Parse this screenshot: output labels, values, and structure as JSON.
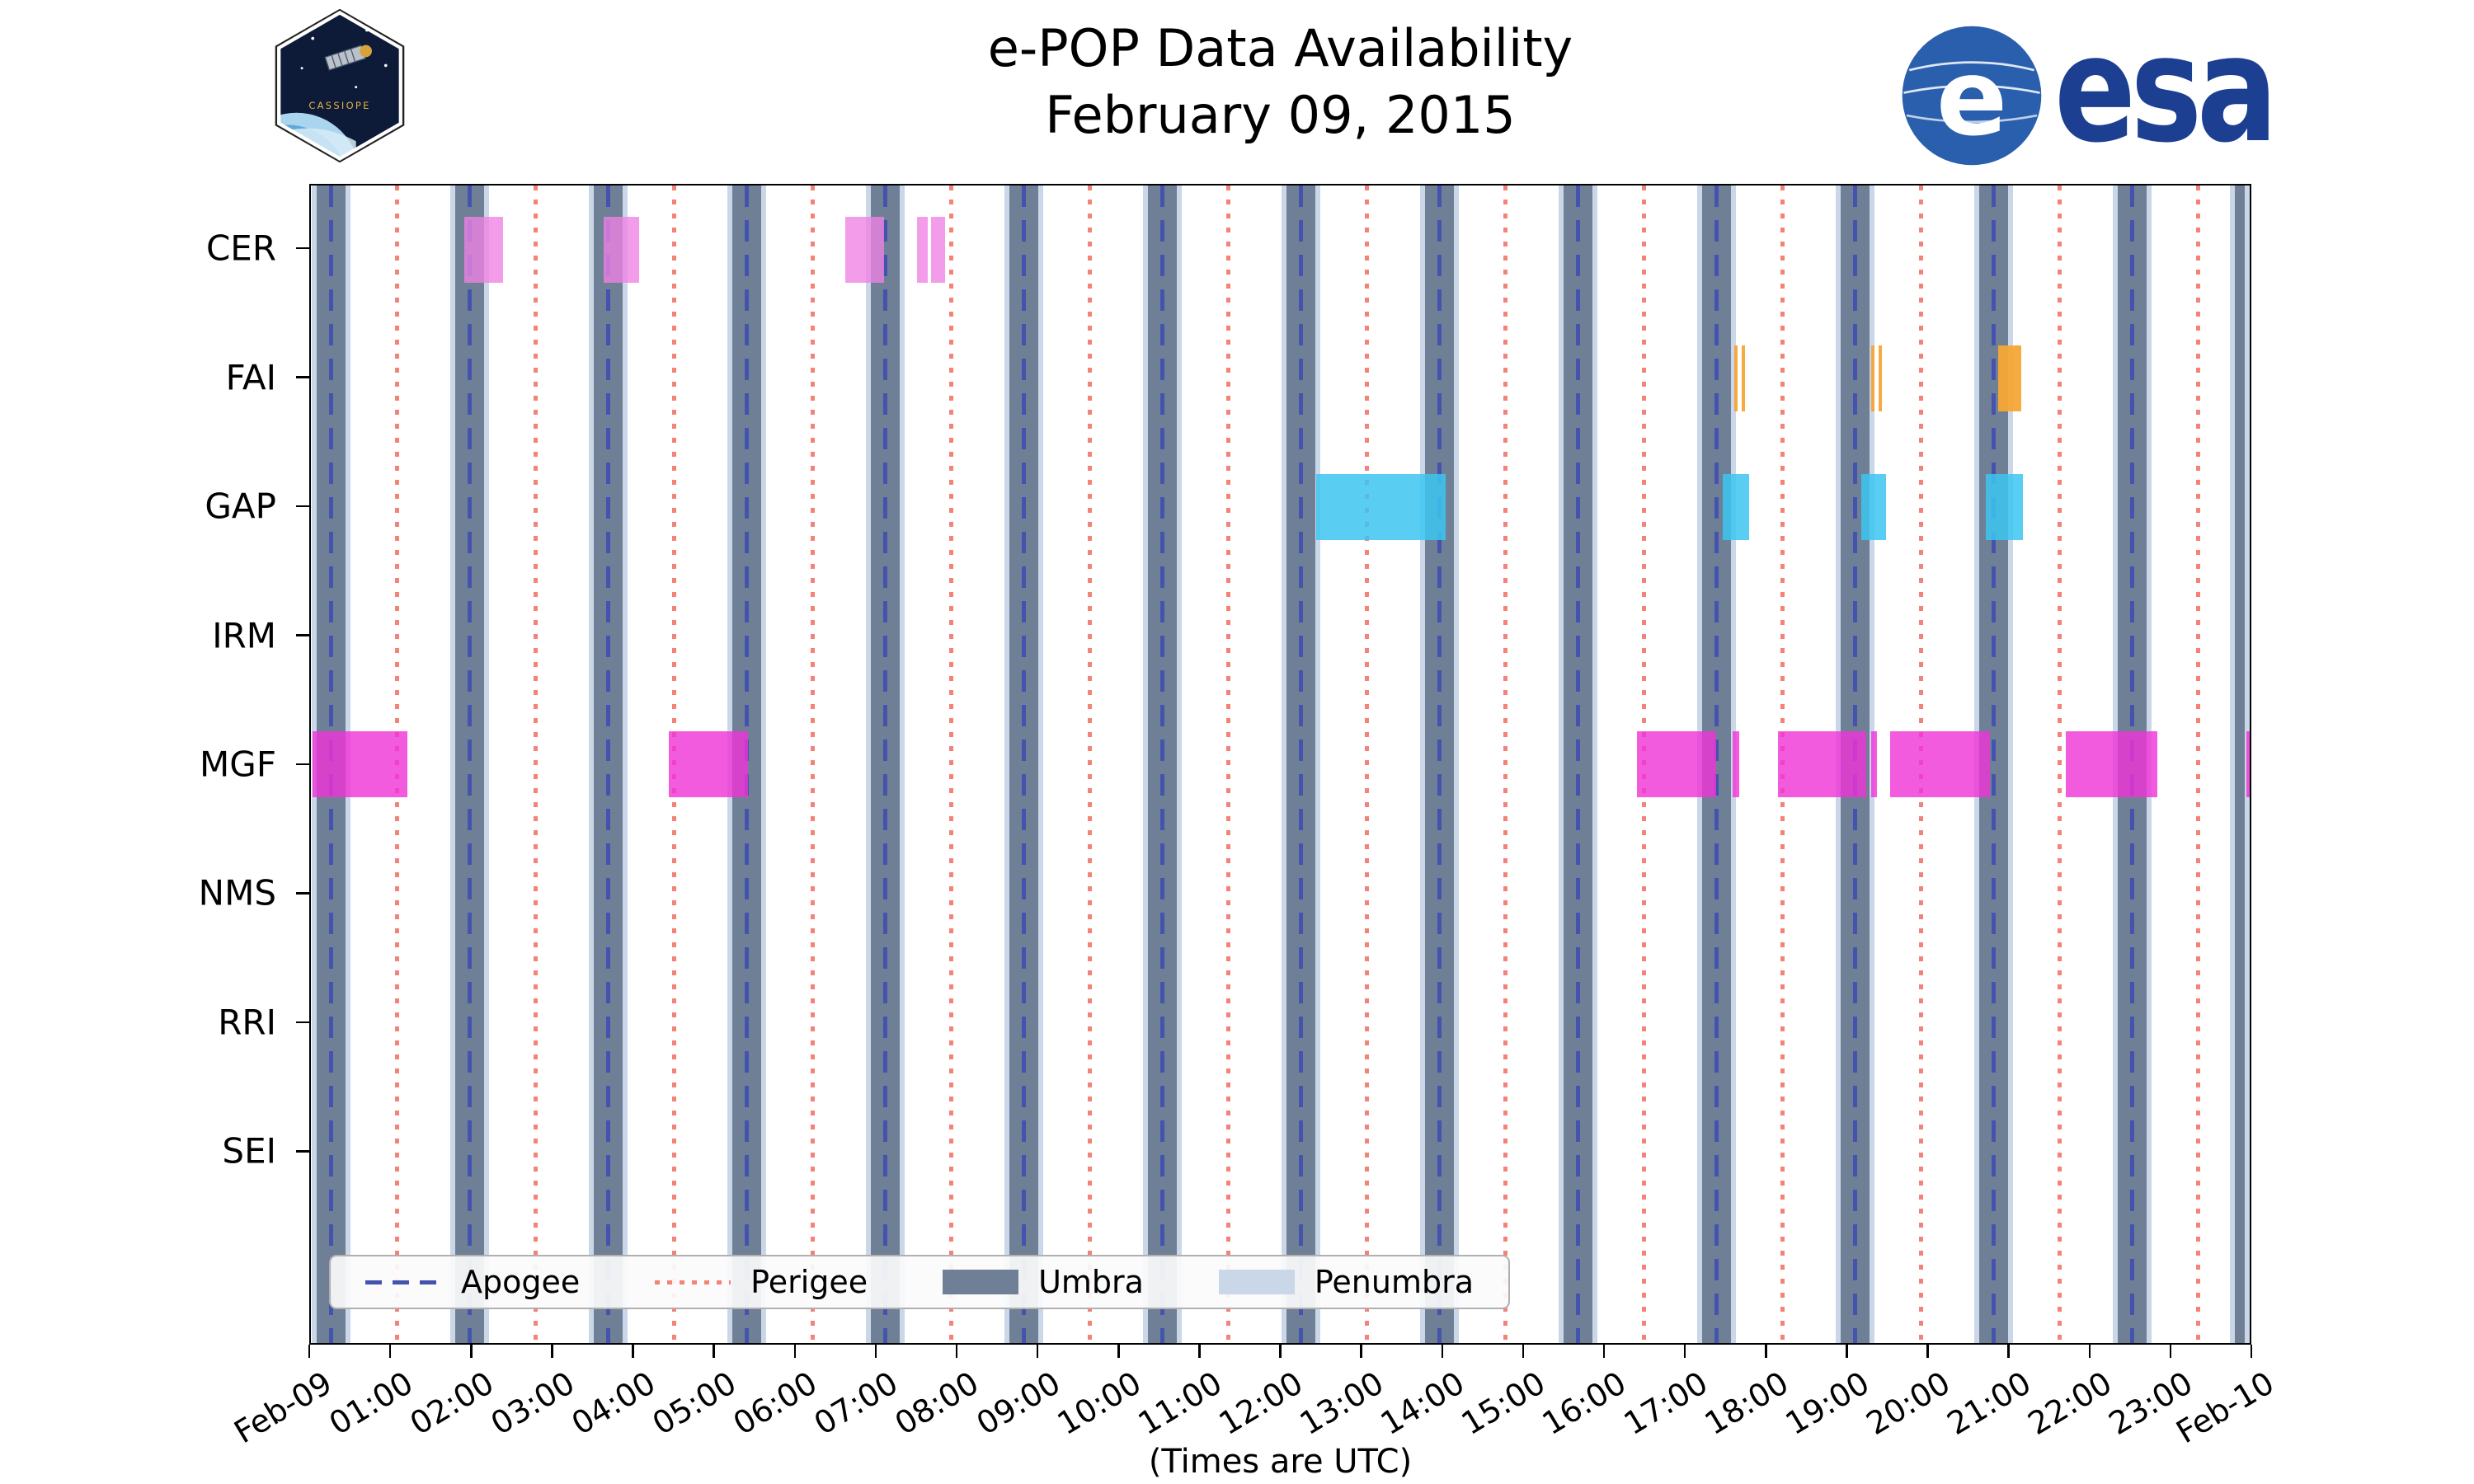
{
  "header": {
    "title": "e-POP Data Availability",
    "subtitle": "February 09, 2015",
    "cassiope_label": "CASSIOPE",
    "esa_label": "esa"
  },
  "axis": {
    "xlabel": "(Times are UTC)",
    "x_ticks": [
      "Feb-09",
      "01:00",
      "02:00",
      "03:00",
      "04:00",
      "05:00",
      "06:00",
      "07:00",
      "08:00",
      "09:00",
      "10:00",
      "11:00",
      "12:00",
      "13:00",
      "14:00",
      "15:00",
      "16:00",
      "17:00",
      "18:00",
      "19:00",
      "20:00",
      "21:00",
      "22:00",
      "23:00",
      "Feb-10"
    ]
  },
  "legend": {
    "items": [
      {
        "label": "Apogee",
        "type": "dashed",
        "color": "#4353ae"
      },
      {
        "label": "Perigee",
        "type": "dotted",
        "color": "#f48276"
      },
      {
        "label": "Umbra",
        "type": "patch",
        "color": "#6f8096"
      },
      {
        "label": "Penumbra",
        "type": "patch",
        "color": "#cad7e8"
      }
    ]
  },
  "chart_data": {
    "type": "timeline",
    "title": "e-POP Data Availability",
    "subtitle": "February 09, 2015",
    "xlabel": "(Times are UTC)",
    "x_range_hours": [
      0,
      24
    ],
    "rows": [
      "CER",
      "FAI",
      "GAP",
      "IRM",
      "MGF",
      "NMS",
      "RRI",
      "SEI"
    ],
    "colors": {
      "umbra": "#6f8096",
      "penumbra": "#cad7e8",
      "apogee": "#4353ae",
      "perigee": "#f48276",
      "background": "#ffffff"
    },
    "penumbra_edge_hours": 0.06,
    "umbra_intervals": [
      [
        0.07,
        0.43
      ],
      [
        1.79,
        2.15
      ],
      [
        3.5,
        3.86
      ],
      [
        5.22,
        5.58
      ],
      [
        6.93,
        7.29
      ],
      [
        8.65,
        9.01
      ],
      [
        10.36,
        10.72
      ],
      [
        12.08,
        12.44
      ],
      [
        13.79,
        14.15
      ],
      [
        15.51,
        15.87
      ],
      [
        17.22,
        17.58
      ],
      [
        18.94,
        19.3
      ],
      [
        20.65,
        21.01
      ],
      [
        22.37,
        22.73
      ],
      [
        23.82,
        24.0
      ]
    ],
    "apogee_hours": [
      0.25,
      1.97,
      3.68,
      5.4,
      7.11,
      8.83,
      10.54,
      12.26,
      13.97,
      15.69,
      17.4,
      19.12,
      20.83,
      22.55
    ],
    "perigee_hours": [
      1.07,
      2.78,
      4.5,
      6.21,
      7.93,
      9.64,
      11.36,
      13.07,
      14.79,
      16.5,
      18.22,
      19.93,
      21.65,
      23.36
    ],
    "series": [
      {
        "row": "CER",
        "color": "rgba(240,130,228,0.78)",
        "intervals": [
          [
            1.9,
            2.38
          ],
          [
            3.62,
            4.06
          ],
          [
            6.61,
            7.09
          ],
          [
            7.5,
            7.64
          ],
          [
            7.68,
            7.85
          ]
        ]
      },
      {
        "row": "FAI",
        "color": "rgba(245,166,54,0.95)",
        "intervals": [
          [
            20.89,
            21.17
          ]
        ],
        "hatched_intervals": [
          [
            17.62,
            17.76
          ],
          [
            19.31,
            19.45
          ]
        ]
      },
      {
        "row": "GAP",
        "color": "rgba(60,198,240,0.85)",
        "intervals": [
          [
            12.44,
            14.05
          ],
          [
            17.48,
            17.8
          ],
          [
            19.19,
            19.5
          ],
          [
            20.73,
            21.19
          ]
        ]
      },
      {
        "row": "IRM",
        "color": "rgba(128,128,128,0.8)",
        "intervals": []
      },
      {
        "row": "MGF",
        "color": "rgba(240,50,215,0.8)",
        "intervals": [
          [
            0.02,
            1.19
          ],
          [
            4.43,
            5.41
          ],
          [
            16.42,
            17.4
          ],
          [
            17.6,
            17.68
          ],
          [
            18.16,
            19.25
          ],
          [
            19.31,
            19.39
          ],
          [
            19.55,
            20.78
          ],
          [
            21.72,
            22.86
          ],
          [
            23.96,
            24.0
          ]
        ]
      },
      {
        "row": "NMS",
        "color": "rgba(128,128,128,0.8)",
        "intervals": []
      },
      {
        "row": "RRI",
        "color": "rgba(128,128,128,0.8)",
        "intervals": []
      },
      {
        "row": "SEI",
        "color": "rgba(128,128,128,0.8)",
        "intervals": []
      }
    ]
  }
}
